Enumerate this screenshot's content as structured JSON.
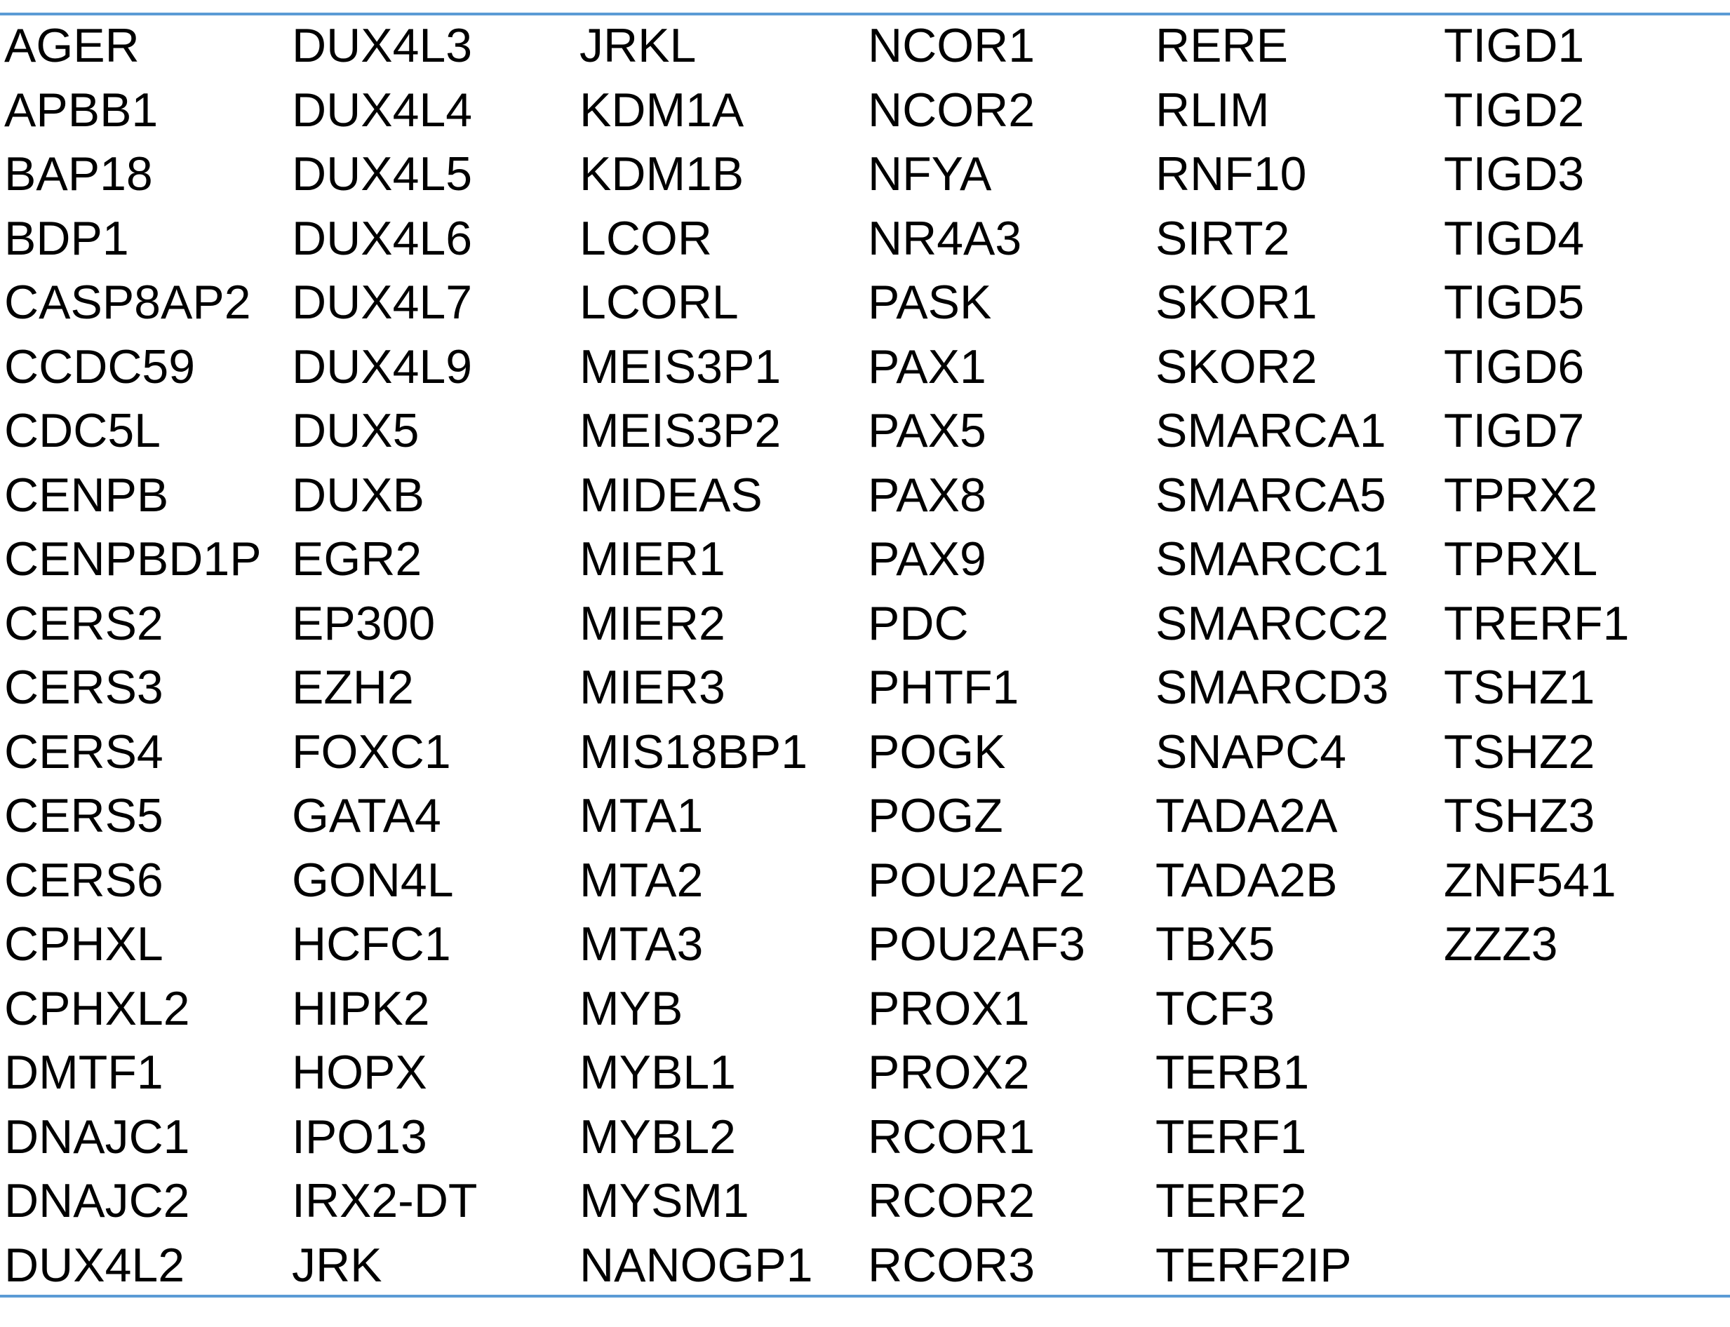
{
  "table": {
    "columns": [
      [
        "AGER",
        "APBB1",
        "BAP18",
        "BDP1",
        "CASP8AP2",
        "CCDC59",
        "CDC5L",
        "CENPB",
        "CENPBD1P",
        "CERS2",
        "CERS3",
        "CERS4",
        "CERS5",
        "CERS6",
        "CPHXL",
        "CPHXL2",
        "DMTF1",
        "DNAJC1",
        "DNAJC2",
        "DUX4L2"
      ],
      [
        "DUX4L3",
        "DUX4L4",
        "DUX4L5",
        "DUX4L6",
        "DUX4L7",
        "DUX4L9",
        "DUX5",
        "DUXB",
        "EGR2",
        "EP300",
        "EZH2",
        "FOXC1",
        "GATA4",
        "GON4L",
        "HCFC1",
        "HIPK2",
        "HOPX",
        "IPO13",
        "IRX2-DT",
        "JRK"
      ],
      [
        "JRKL",
        "KDM1A",
        "KDM1B",
        "LCOR",
        "LCORL",
        "MEIS3P1",
        "MEIS3P2",
        "MIDEAS",
        "MIER1",
        "MIER2",
        "MIER3",
        "MIS18BP1",
        "MTA1",
        "MTA2",
        "MTA3",
        "MYB",
        "MYBL1",
        "MYBL2",
        "MYSM1",
        "NANOGP1"
      ],
      [
        "NCOR1",
        "NCOR2",
        "NFYA",
        "NR4A3",
        "PASK",
        "PAX1",
        "PAX5",
        "PAX8",
        "PAX9",
        "PDC",
        "PHTF1",
        "POGK",
        "POGZ",
        "POU2AF2",
        "POU2AF3",
        "PROX1",
        "PROX2",
        "RCOR1",
        "RCOR2",
        "RCOR3"
      ],
      [
        "RERE",
        "RLIM",
        "RNF10",
        "SIRT2",
        "SKOR1",
        "SKOR2",
        "SMARCA1",
        "SMARCA5",
        "SMARCC1",
        "SMARCC2",
        "SMARCD3",
        "SNAPC4",
        "TADA2A",
        "TADA2B",
        "TBX5",
        "TCF3",
        "TERB1",
        "TERF1",
        "TERF2",
        "TERF2IP"
      ],
      [
        "TIGD1",
        "TIGD2",
        "TIGD3",
        "TIGD4",
        "TIGD5",
        "TIGD6",
        "TIGD7",
        "TPRX2",
        "TPRXL",
        "TRERF1",
        "TSHZ1",
        "TSHZ2",
        "TSHZ3",
        "ZNF541",
        "ZZZ3"
      ]
    ]
  },
  "colors": {
    "rule": "#5b9bd5",
    "text": "#000000"
  }
}
